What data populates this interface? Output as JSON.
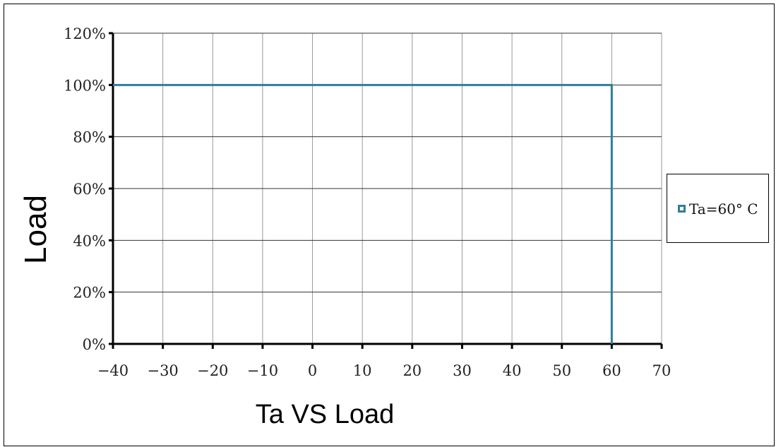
{
  "chart_data": {
    "type": "line",
    "xlabel": "Ta VS Load",
    "ylabel": "Load",
    "xlim": [
      -40,
      70
    ],
    "ylim": [
      0,
      120
    ],
    "x_ticks": [
      -40,
      -30,
      -20,
      -10,
      0,
      10,
      20,
      30,
      40,
      50,
      60,
      70
    ],
    "x_tick_labels": [
      "−40",
      "−30",
      "−20",
      "−10",
      "0",
      "10",
      "20",
      "30",
      "40",
      "50",
      "60",
      "70"
    ],
    "y_ticks": [
      0,
      20,
      40,
      60,
      80,
      100,
      120
    ],
    "y_tick_labels": [
      "0%",
      "20%",
      "40%",
      "60%",
      "80%",
      "100%",
      "120%"
    ],
    "grid": true,
    "legend_position": "right",
    "series": [
      {
        "name": "Ta=60° C",
        "color": "#2f7f97",
        "x": [
          -40,
          60,
          60
        ],
        "y": [
          100,
          100,
          0
        ]
      }
    ]
  }
}
